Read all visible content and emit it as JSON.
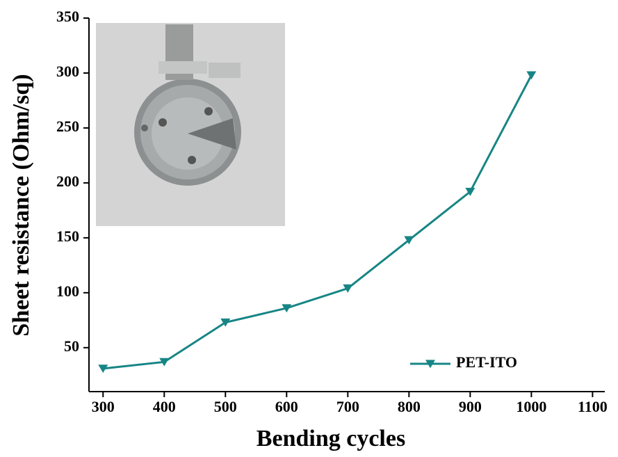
{
  "chart_data": {
    "type": "line",
    "x_label": "Bending cycles",
    "y_label": "Sheet resistance (Ohm/sq)",
    "x": [
      300,
      400,
      500,
      600,
      700,
      800,
      900,
      1000
    ],
    "series": [
      {
        "name": "PET-ITO",
        "color": "#178585",
        "values": [
          31,
          37,
          73,
          86,
          104,
          148,
          192,
          298
        ]
      }
    ],
    "xlim": [
      277,
      1120
    ],
    "xticks": [
      300,
      400,
      500,
      600,
      700,
      800,
      900,
      1000,
      1100
    ],
    "ylim": [
      10,
      350
    ],
    "yticks": [
      50,
      100,
      150,
      200,
      250,
      300,
      350
    ],
    "legend": "lower right",
    "marker": "triangle-down"
  }
}
